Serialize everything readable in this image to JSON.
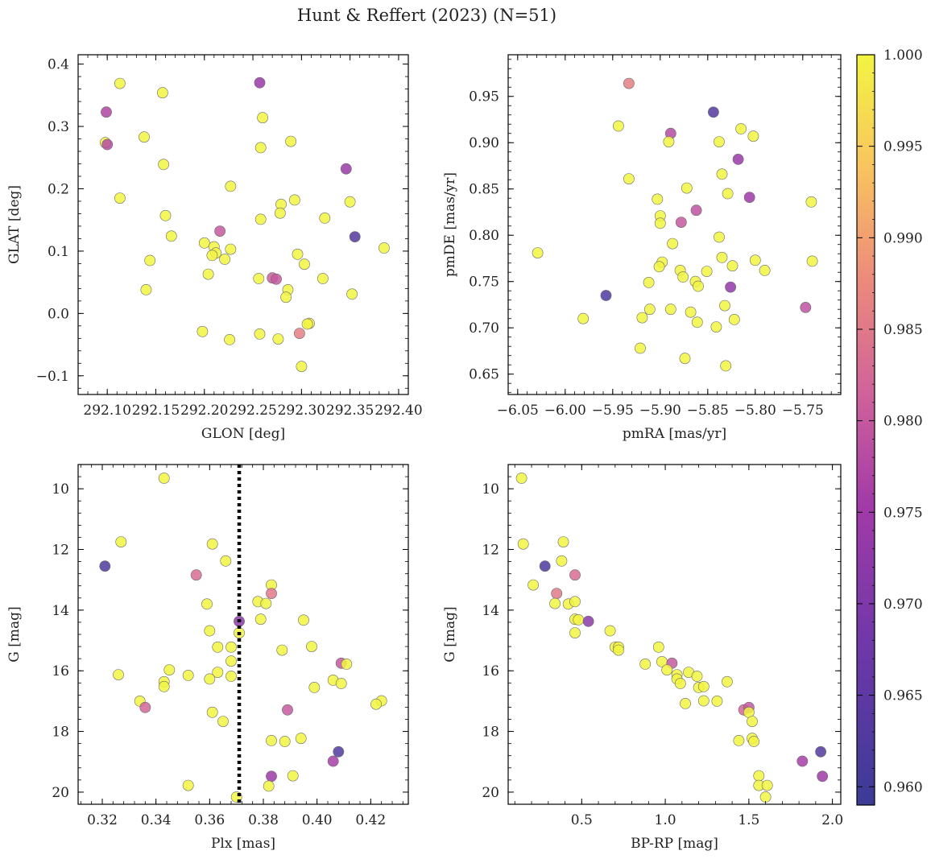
{
  "figure": {
    "title": "Hunt & Reffert (2023) (N=51)"
  },
  "colorbar": {
    "min": 0.959,
    "max": 1.0,
    "ticks": [
      0.96,
      0.965,
      0.97,
      0.975,
      0.98,
      0.985,
      0.99,
      0.995,
      1.0
    ],
    "colormap": "plasma-like",
    "low_color": "#3b3b96",
    "mid_color": "#c23da0",
    "high_color": "#f2f542"
  },
  "chart_data": [
    {
      "type": "scatter",
      "name": "panel-glon-glat",
      "xlabel": "GLON [deg]",
      "ylabel": "GLAT [deg]",
      "xlim": [
        292.07,
        292.41
      ],
      "ylim": [
        -0.13,
        0.415
      ],
      "xticks": [
        292.1,
        292.15,
        292.2,
        292.25,
        292.3,
        292.35,
        292.4
      ],
      "xticklabels": [
        "292.10",
        "292.15",
        "292.20",
        "292.25",
        "292.30",
        "292.35",
        "292.40"
      ],
      "yticks": [
        -0.1,
        0.0,
        0.1,
        0.2,
        0.3,
        0.4
      ],
      "yticklabels": [
        "−0.1",
        "0.0",
        "0.1",
        "0.2",
        "0.3",
        "0.4"
      ],
      "invert_y": false,
      "points": [
        [
          292.113,
          0.369,
          1.0
        ],
        [
          292.257,
          0.37,
          0.974
        ],
        [
          292.099,
          0.323,
          0.977
        ],
        [
          292.157,
          0.354,
          1.0
        ],
        [
          292.098,
          0.274,
          1.0
        ],
        [
          292.1,
          0.271,
          0.978
        ],
        [
          292.138,
          0.283,
          1.0
        ],
        [
          292.26,
          0.314,
          1.0
        ],
        [
          292.258,
          0.266,
          1.0
        ],
        [
          292.289,
          0.276,
          1.0
        ],
        [
          292.158,
          0.239,
          1.0
        ],
        [
          292.346,
          0.232,
          0.974
        ],
        [
          292.113,
          0.185,
          1.0
        ],
        [
          292.227,
          0.204,
          1.0
        ],
        [
          292.293,
          0.182,
          1.0
        ],
        [
          292.279,
          0.175,
          1.0
        ],
        [
          292.35,
          0.179,
          1.0
        ],
        [
          292.16,
          0.157,
          1.0
        ],
        [
          292.278,
          0.161,
          1.0
        ],
        [
          292.258,
          0.151,
          1.0
        ],
        [
          292.324,
          0.153,
          1.0
        ],
        [
          292.216,
          0.132,
          0.98
        ],
        [
          292.166,
          0.124,
          1.0
        ],
        [
          292.355,
          0.123,
          0.963
        ],
        [
          292.2,
          0.113,
          1.0
        ],
        [
          292.21,
          0.107,
          1.0
        ],
        [
          292.227,
          0.103,
          1.0
        ],
        [
          292.385,
          0.105,
          1.0
        ],
        [
          292.212,
          0.097,
          1.0
        ],
        [
          292.208,
          0.093,
          1.0
        ],
        [
          292.296,
          0.095,
          1.0
        ],
        [
          292.221,
          0.087,
          1.0
        ],
        [
          292.144,
          0.085,
          1.0
        ],
        [
          292.303,
          0.079,
          1.0
        ],
        [
          292.204,
          0.063,
          1.0
        ],
        [
          292.256,
          0.056,
          1.0
        ],
        [
          292.27,
          0.057,
          0.981
        ],
        [
          292.274,
          0.055,
          0.98
        ],
        [
          292.322,
          0.056,
          1.0
        ],
        [
          292.14,
          0.038,
          1.0
        ],
        [
          292.286,
          0.038,
          1.0
        ],
        [
          292.284,
          0.026,
          1.0
        ],
        [
          292.352,
          0.031,
          1.0
        ],
        [
          292.308,
          -0.016,
          0.999
        ],
        [
          292.306,
          -0.017,
          1.0
        ],
        [
          292.198,
          -0.029,
          1.0
        ],
        [
          292.257,
          -0.033,
          1.0
        ],
        [
          292.298,
          -0.032,
          0.986
        ],
        [
          292.226,
          -0.042,
          1.0
        ],
        [
          292.276,
          -0.041,
          1.0
        ],
        [
          292.3,
          -0.085,
          1.0
        ]
      ]
    },
    {
      "type": "scatter",
      "name": "panel-pmra-pmde",
      "xlabel": "pmRA [mas/yr]",
      "ylabel": "pmDE [mas/yr]",
      "xlim": [
        -6.06,
        -5.71
      ],
      "ylim": [
        0.628,
        0.995
      ],
      "xticks": [
        -6.05,
        -6.0,
        -5.95,
        -5.9,
        -5.85,
        -5.8,
        -5.75
      ],
      "xticklabels": [
        "−6.05",
        "−6.00",
        "−5.95",
        "−5.90",
        "−5.85",
        "−5.80",
        "−5.75"
      ],
      "yticks": [
        0.65,
        0.7,
        0.75,
        0.8,
        0.85,
        0.9,
        0.95
      ],
      "yticklabels": [
        "0.65",
        "0.70",
        "0.75",
        "0.80",
        "0.85",
        "0.90",
        "0.95"
      ],
      "invert_y": false,
      "points": [
        [
          -5.933,
          0.964,
          0.986
        ],
        [
          -5.844,
          0.933,
          0.963
        ],
        [
          -5.944,
          0.918,
          1.0
        ],
        [
          -5.815,
          0.915,
          1.0
        ],
        [
          -5.889,
          0.91,
          0.978
        ],
        [
          -5.802,
          0.907,
          1.0
        ],
        [
          -5.891,
          0.901,
          1.0
        ],
        [
          -5.838,
          0.901,
          1.0
        ],
        [
          -5.818,
          0.882,
          0.974
        ],
        [
          -5.835,
          0.866,
          1.0
        ],
        [
          -5.933,
          0.861,
          1.0
        ],
        [
          -5.872,
          0.851,
          1.0
        ],
        [
          -5.829,
          0.845,
          1.0
        ],
        [
          -5.806,
          0.841,
          0.975
        ],
        [
          -5.903,
          0.839,
          1.0
        ],
        [
          -5.741,
          0.836,
          1.0
        ],
        [
          -5.862,
          0.827,
          0.979
        ],
        [
          -5.9,
          0.821,
          1.0
        ],
        [
          -5.878,
          0.814,
          0.98
        ],
        [
          -5.9,
          0.813,
          1.0
        ],
        [
          -5.838,
          0.798,
          1.0
        ],
        [
          -5.887,
          0.791,
          1.0
        ],
        [
          -6.029,
          0.781,
          1.0
        ],
        [
          -5.835,
          0.776,
          1.0
        ],
        [
          -5.8,
          0.773,
          1.0
        ],
        [
          -5.74,
          0.772,
          1.0
        ],
        [
          -5.898,
          0.771,
          1.0
        ],
        [
          -5.901,
          0.766,
          1.0
        ],
        [
          -5.824,
          0.767,
          1.0
        ],
        [
          -5.879,
          0.762,
          1.0
        ],
        [
          -5.851,
          0.761,
          1.0
        ],
        [
          -5.79,
          0.762,
          1.0
        ],
        [
          -5.876,
          0.755,
          1.0
        ],
        [
          -5.863,
          0.75,
          1.0
        ],
        [
          -5.912,
          0.749,
          1.0
        ],
        [
          -5.86,
          0.745,
          1.0
        ],
        [
          -5.826,
          0.744,
          0.973
        ],
        [
          -5.957,
          0.735,
          0.962
        ],
        [
          -5.832,
          0.724,
          1.0
        ],
        [
          -5.747,
          0.722,
          0.979
        ],
        [
          -5.911,
          0.72,
          1.0
        ],
        [
          -5.889,
          0.72,
          1.0
        ],
        [
          -5.868,
          0.717,
          1.0
        ],
        [
          -5.919,
          0.711,
          1.0
        ],
        [
          -5.981,
          0.71,
          1.0
        ],
        [
          -5.822,
          0.709,
          1.0
        ],
        [
          -5.861,
          0.706,
          1.0
        ],
        [
          -5.841,
          0.701,
          1.0
        ],
        [
          -5.921,
          0.678,
          1.0
        ],
        [
          -5.874,
          0.667,
          1.0
        ],
        [
          -5.831,
          0.659,
          1.0
        ]
      ]
    },
    {
      "type": "scatter",
      "name": "panel-plx-g",
      "xlabel": "Plx [mas]",
      "ylabel": "G [mag]",
      "xlim": [
        0.311,
        0.434
      ],
      "ylim": [
        9.2,
        20.4
      ],
      "xticks": [
        0.32,
        0.34,
        0.36,
        0.38,
        0.4,
        0.42
      ],
      "xticklabels": [
        "0.32",
        "0.34",
        "0.36",
        "0.38",
        "0.40",
        "0.42"
      ],
      "yticks": [
        10,
        12,
        14,
        16,
        18,
        20
      ],
      "yticklabels": [
        "10",
        "12",
        "14",
        "16",
        "18",
        "20"
      ],
      "invert_y": true,
      "vline": 0.371,
      "points": [
        [
          0.343,
          9.65,
          1.0
        ],
        [
          0.327,
          11.75,
          1.0
        ],
        [
          0.361,
          11.82,
          1.0
        ],
        [
          0.366,
          12.38,
          1.0
        ],
        [
          0.321,
          12.55,
          0.962
        ],
        [
          0.355,
          12.84,
          0.983
        ],
        [
          0.383,
          13.17,
          1.0
        ],
        [
          0.383,
          13.45,
          0.985
        ],
        [
          0.378,
          13.72,
          1.0
        ],
        [
          0.381,
          13.78,
          1.0
        ],
        [
          0.359,
          13.8,
          1.0
        ],
        [
          0.379,
          14.3,
          1.0
        ],
        [
          0.371,
          14.37,
          0.972
        ],
        [
          0.395,
          14.33,
          1.0
        ],
        [
          0.36,
          14.68,
          1.0
        ],
        [
          0.371,
          14.75,
          1.0
        ],
        [
          0.363,
          15.22,
          1.0
        ],
        [
          0.368,
          15.22,
          1.0
        ],
        [
          0.398,
          15.2,
          1.0
        ],
        [
          0.387,
          15.32,
          1.0
        ],
        [
          0.368,
          15.68,
          1.0
        ],
        [
          0.409,
          15.75,
          0.98
        ],
        [
          0.411,
          15.78,
          1.0
        ],
        [
          0.345,
          15.97,
          1.0
        ],
        [
          0.363,
          16.05,
          1.0
        ],
        [
          0.326,
          16.13,
          1.0
        ],
        [
          0.352,
          16.15,
          1.0
        ],
        [
          0.368,
          16.18,
          1.0
        ],
        [
          0.36,
          16.27,
          1.0
        ],
        [
          0.406,
          16.31,
          1.0
        ],
        [
          0.343,
          16.36,
          1.0
        ],
        [
          0.409,
          16.42,
          1.0
        ],
        [
          0.343,
          16.52,
          1.0
        ],
        [
          0.399,
          16.55,
          1.0
        ],
        [
          0.334,
          17.0,
          1.0
        ],
        [
          0.424,
          16.99,
          1.0
        ],
        [
          0.422,
          17.1,
          1.0
        ],
        [
          0.336,
          17.21,
          0.982
        ],
        [
          0.389,
          17.29,
          0.98
        ],
        [
          0.361,
          17.37,
          1.0
        ],
        [
          0.365,
          17.67,
          1.0
        ],
        [
          0.394,
          18.23,
          1.0
        ],
        [
          0.383,
          18.3,
          1.0
        ],
        [
          0.388,
          18.33,
          1.0
        ],
        [
          0.408,
          18.67,
          0.963
        ],
        [
          0.406,
          18.98,
          0.976
        ],
        [
          0.383,
          19.48,
          0.975
        ],
        [
          0.391,
          19.46,
          1.0
        ],
        [
          0.352,
          19.78,
          1.0
        ],
        [
          0.382,
          19.8,
          1.0
        ],
        [
          0.37,
          20.16,
          1.0
        ]
      ]
    },
    {
      "type": "scatter",
      "name": "panel-bprp-g",
      "xlabel": "BP-RP [mag]",
      "ylabel": "G [mag]",
      "xlim": [
        0.06,
        2.05
      ],
      "ylim": [
        9.2,
        20.4
      ],
      "xticks": [
        0.5,
        1.0,
        1.5,
        2.0
      ],
      "xticklabels": [
        "0.5",
        "1.0",
        "1.5",
        "2.0"
      ],
      "yticks": [
        10,
        12,
        14,
        16,
        18,
        20
      ],
      "yticklabels": [
        "10",
        "12",
        "14",
        "16",
        "18",
        "20"
      ],
      "invert_y": true,
      "points": [
        [
          0.14,
          9.65,
          1.0
        ],
        [
          0.15,
          11.82,
          1.0
        ],
        [
          0.39,
          11.75,
          1.0
        ],
        [
          0.38,
          12.38,
          1.0
        ],
        [
          0.28,
          12.55,
          0.962
        ],
        [
          0.46,
          12.84,
          0.983
        ],
        [
          0.21,
          13.17,
          1.0
        ],
        [
          0.35,
          13.45,
          0.985
        ],
        [
          0.34,
          13.78,
          1.0
        ],
        [
          0.42,
          13.8,
          1.0
        ],
        [
          0.46,
          13.72,
          1.0
        ],
        [
          0.46,
          14.3,
          1.0
        ],
        [
          0.48,
          14.32,
          1.0
        ],
        [
          0.54,
          14.37,
          0.972
        ],
        [
          0.46,
          14.75,
          1.0
        ],
        [
          0.67,
          14.68,
          1.0
        ],
        [
          0.7,
          15.22,
          1.0
        ],
        [
          0.72,
          15.22,
          1.0
        ],
        [
          0.72,
          15.32,
          1.0
        ],
        [
          0.96,
          15.22,
          1.0
        ],
        [
          0.88,
          15.78,
          1.0
        ],
        [
          0.98,
          15.7,
          1.0
        ],
        [
          1.04,
          15.75,
          0.98
        ],
        [
          1.01,
          15.97,
          1.0
        ],
        [
          1.07,
          16.13,
          1.0
        ],
        [
          1.14,
          16.05,
          1.0
        ],
        [
          1.07,
          16.27,
          1.0
        ],
        [
          1.09,
          16.42,
          1.0
        ],
        [
          1.19,
          16.18,
          1.0
        ],
        [
          1.37,
          16.36,
          1.0
        ],
        [
          1.2,
          16.55,
          1.0
        ],
        [
          1.23,
          16.52,
          1.0
        ],
        [
          1.12,
          17.08,
          1.0
        ],
        [
          1.23,
          16.99,
          1.0
        ],
        [
          1.31,
          17.0,
          1.0
        ],
        [
          1.47,
          17.29,
          0.982
        ],
        [
          1.5,
          17.21,
          0.98
        ],
        [
          1.5,
          17.37,
          1.0
        ],
        [
          1.52,
          17.67,
          1.0
        ],
        [
          1.44,
          18.3,
          1.0
        ],
        [
          1.52,
          18.23,
          1.0
        ],
        [
          1.53,
          18.33,
          1.0
        ],
        [
          1.93,
          18.67,
          0.963
        ],
        [
          1.82,
          18.98,
          0.976
        ],
        [
          1.56,
          19.46,
          1.0
        ],
        [
          1.94,
          19.48,
          0.975
        ],
        [
          1.56,
          19.78,
          1.0
        ],
        [
          1.61,
          19.78,
          1.0
        ],
        [
          1.6,
          20.16,
          1.0
        ]
      ]
    }
  ]
}
